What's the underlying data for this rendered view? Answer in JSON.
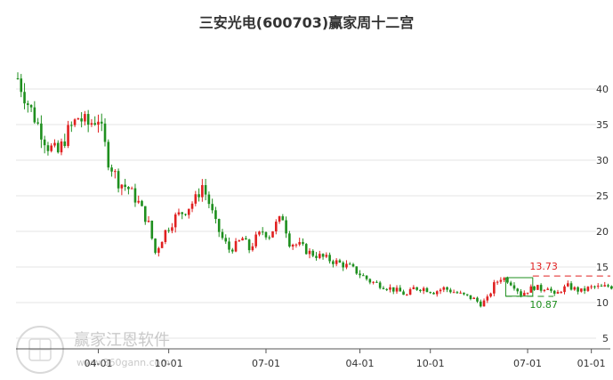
{
  "chart_data": {
    "type": "candlestick",
    "title": "三安光电(600703)赢家周十二宫",
    "x_ticks": [
      "04-01",
      "10-01",
      "07-01",
      "04-01",
      "10-01",
      "07-01",
      "01-01"
    ],
    "y_ticks": [
      5,
      10,
      15,
      20,
      25,
      30,
      35,
      40
    ],
    "ylim": [
      3.5,
      45
    ],
    "grid": "horizontal",
    "colors": {
      "up": "#e02020",
      "down": "#1e8f1e",
      "resistance": "#e02020",
      "support": "#1e8f1e"
    },
    "resistance_label": "13.73",
    "support_label": "10.87",
    "resistance_value": 13.73,
    "support_value": 10.87,
    "path_points": [
      [
        0,
        41.5
      ],
      [
        3,
        38
      ],
      [
        6,
        35
      ],
      [
        9,
        32
      ],
      [
        12,
        31
      ],
      [
        15,
        34
      ],
      [
        18,
        36
      ],
      [
        21,
        35
      ],
      [
        24,
        36
      ],
      [
        27,
        30
      ],
      [
        30,
        27
      ],
      [
        33,
        26
      ],
      [
        36,
        24
      ],
      [
        39,
        21
      ],
      [
        41,
        17
      ],
      [
        44,
        20
      ],
      [
        47,
        22
      ],
      [
        50,
        23
      ],
      [
        53,
        24.5
      ],
      [
        55,
        26.5
      ],
      [
        57,
        24
      ],
      [
        59,
        21
      ],
      [
        61,
        19
      ],
      [
        63,
        17.5
      ],
      [
        65,
        18
      ],
      [
        67,
        19
      ],
      [
        69,
        17.5
      ],
      [
        71,
        19
      ],
      [
        73,
        20
      ],
      [
        75,
        19.5
      ],
      [
        77,
        21
      ],
      [
        79,
        22
      ],
      [
        81,
        18.5
      ],
      [
        84,
        18
      ],
      [
        87,
        17
      ],
      [
        90,
        16.5
      ],
      [
        93,
        16
      ],
      [
        96,
        15.5
      ],
      [
        99,
        15
      ],
      [
        102,
        14
      ],
      [
        105,
        13
      ],
      [
        108,
        12.5
      ],
      [
        111,
        12
      ],
      [
        114,
        11.5
      ],
      [
        116,
        11
      ],
      [
        118,
        12
      ],
      [
        121,
        12
      ],
      [
        124,
        11.5
      ],
      [
        127,
        12
      ],
      [
        130,
        11.5
      ],
      [
        133,
        11
      ],
      [
        136,
        10.5
      ],
      [
        138,
        9.8
      ],
      [
        140,
        10.5
      ],
      [
        142,
        12.5
      ],
      [
        144,
        13.5
      ],
      [
        146,
        13.2
      ],
      [
        148,
        12.4
      ],
      [
        150,
        11.2
      ],
      [
        152,
        11.7
      ],
      [
        154,
        12.2
      ],
      [
        156,
        11.9
      ],
      [
        158,
        12.3
      ],
      [
        160,
        10.9
      ],
      [
        162,
        11.8
      ],
      [
        164,
        12.3
      ],
      [
        166,
        11.9
      ],
      [
        168,
        11.6
      ],
      [
        170,
        12
      ],
      [
        172,
        12.2
      ],
      [
        174,
        12.1
      ],
      [
        176,
        12.3
      ],
      [
        178,
        12.2
      ]
    ],
    "n_weeks": 179,
    "box": {
      "start_week": 146,
      "end_week": 153,
      "high": 13.5,
      "low": 10.9
    }
  },
  "watermark": {
    "brand": "赢家江恩软件",
    "url": "www.360gann.com",
    "seal": "赢家江恩"
  }
}
